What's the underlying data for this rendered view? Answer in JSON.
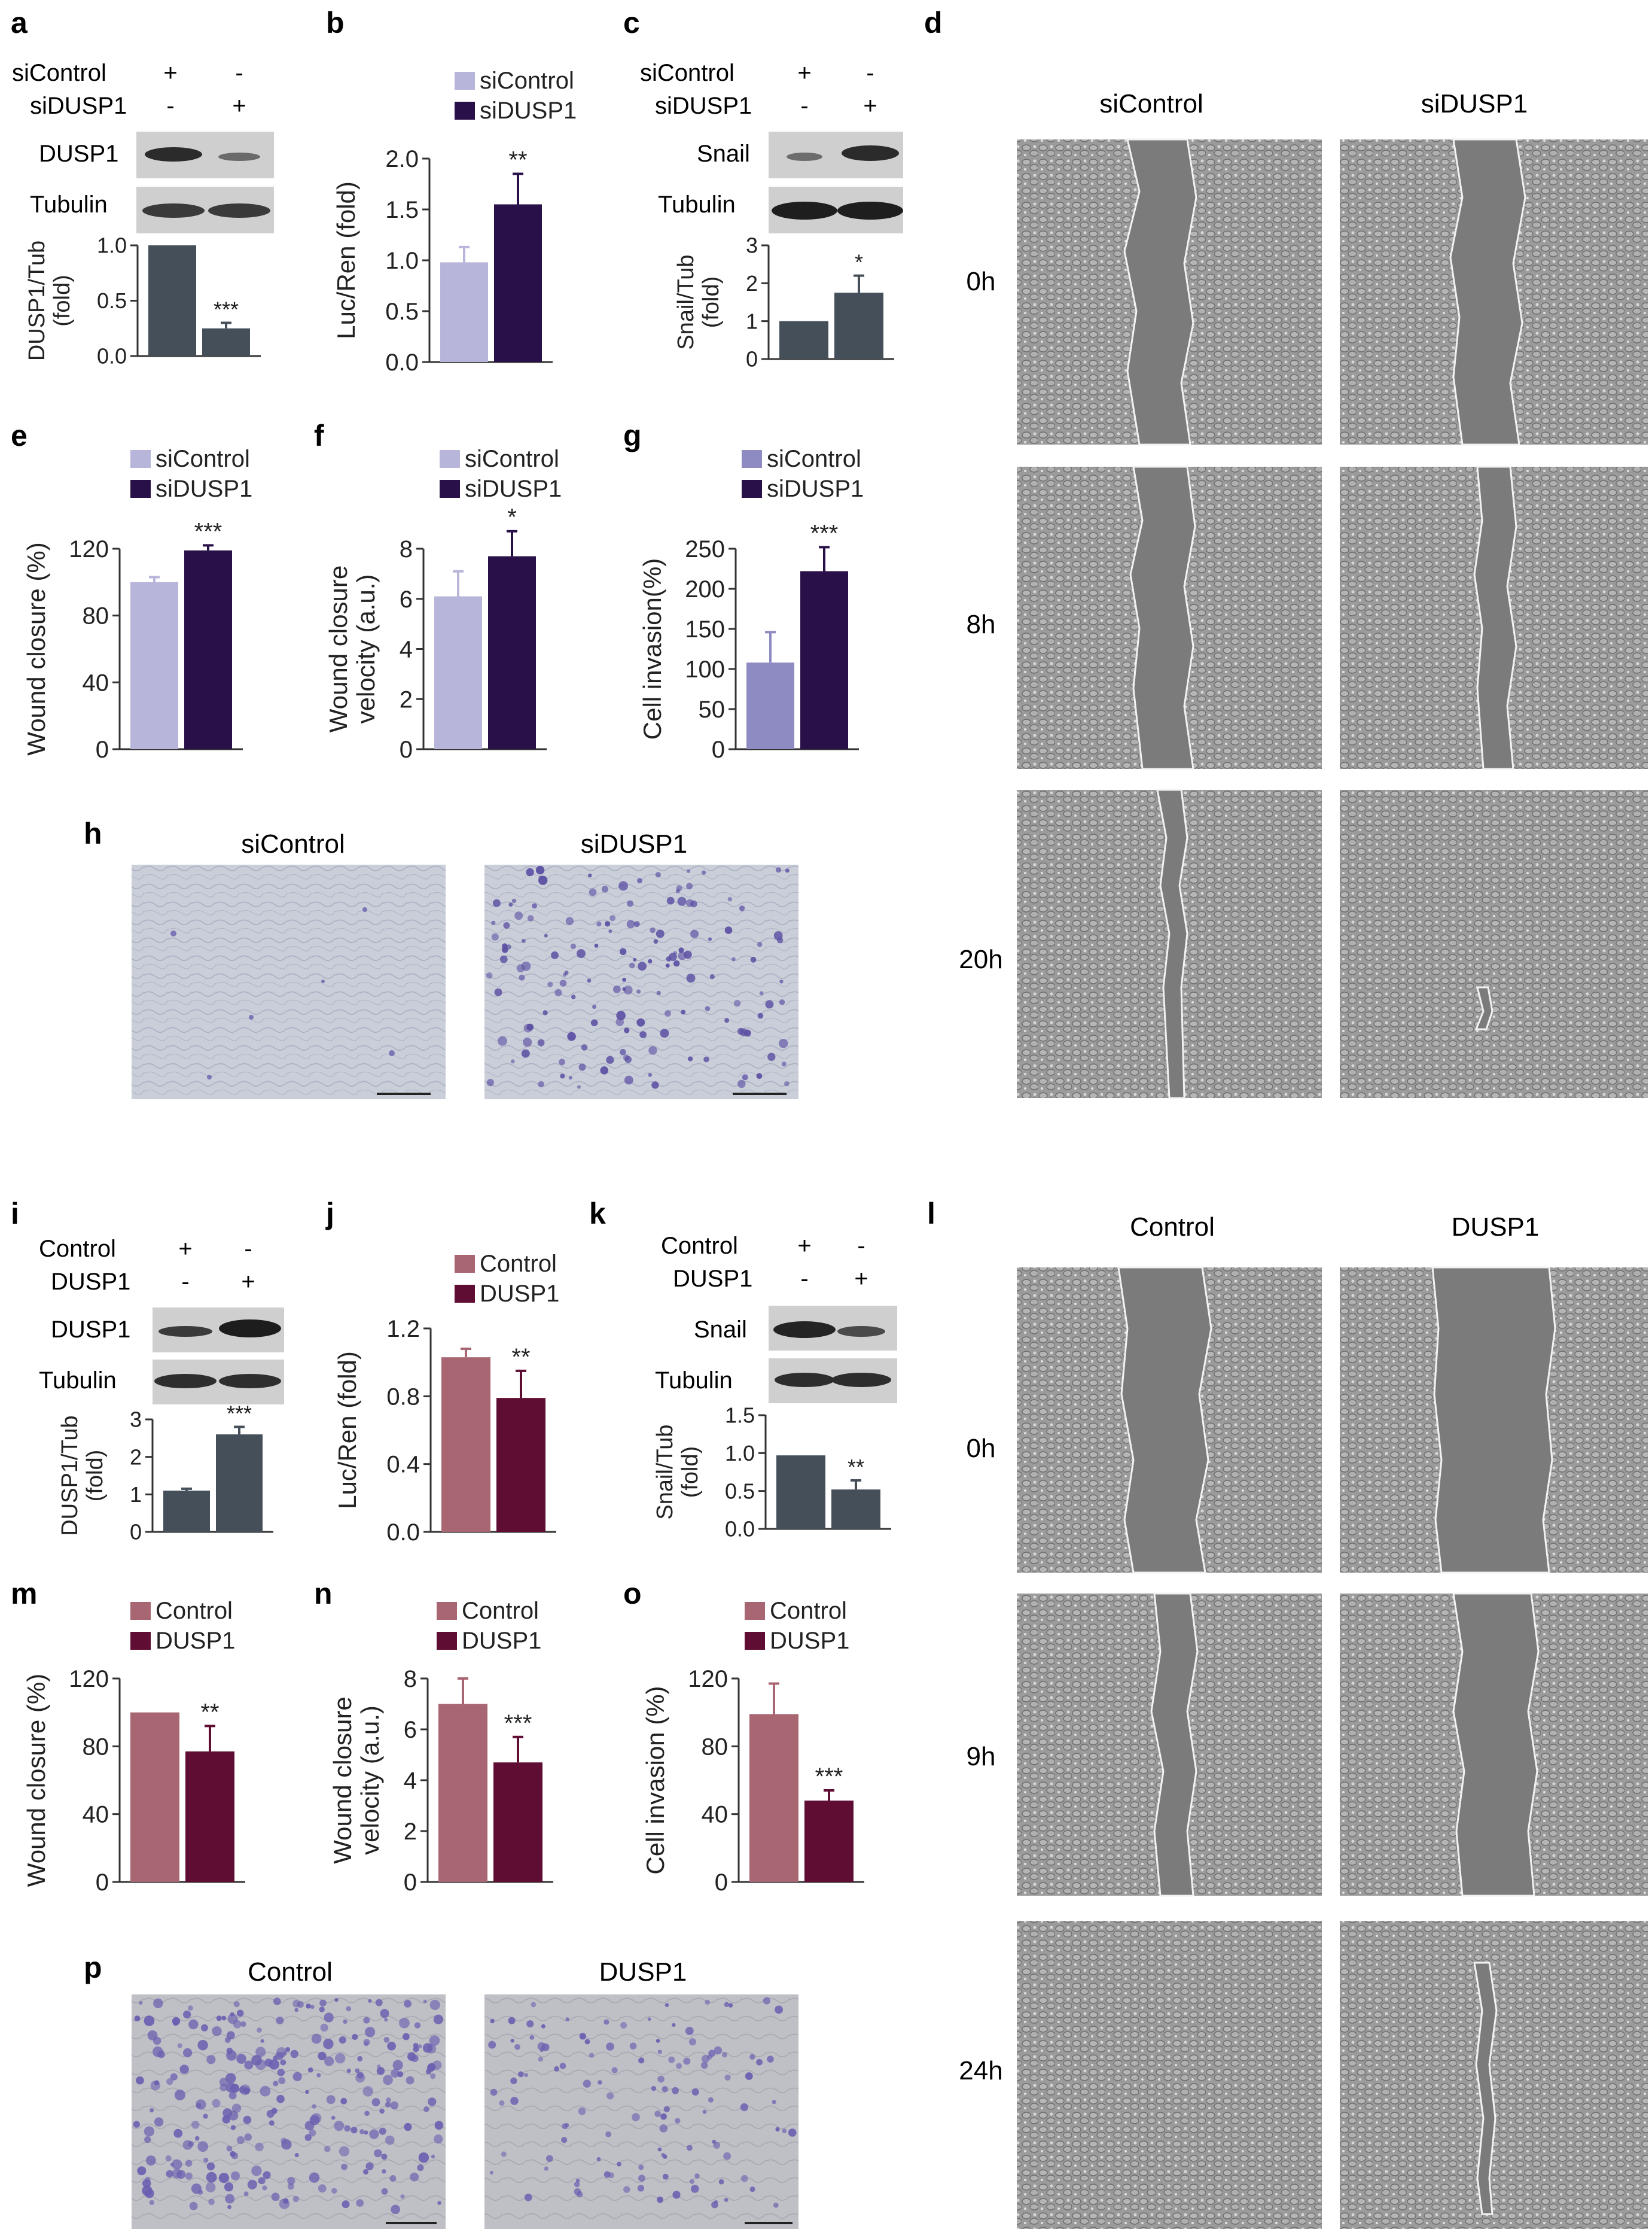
{
  "colors": {
    "si_ctrl": "#b7b5d9",
    "si_dusp1": "#2a1048",
    "si_ctrl_g": "#8e8bc2",
    "ctrl": "#a86673",
    "dusp1": "#5f0d33",
    "grey_bar": "#444f59",
    "axis": "#333333",
    "micro_bg": "#9a9a9a",
    "micro_gap": "#7d7d7d",
    "invasion_bg": "#c6cbd7",
    "invasion_dot": "#5b4fa3",
    "blot_bg": "#cfcfcf",
    "blot_band": "#2b2b2b"
  },
  "icons": {
    "micrograph": "phase-contrast-micrograph-icon",
    "blot": "western-blot-icon"
  },
  "panels": {
    "a": {
      "label": "a",
      "row1": [
        "siControl",
        "+",
        "-"
      ],
      "row2": [
        "siDUSP1",
        "-",
        "+"
      ],
      "blot1": "DUSP1",
      "blot2": "Tubulin"
    },
    "b": {
      "label": "b"
    },
    "c": {
      "label": "c",
      "row1": [
        "siControl",
        "+",
        "-"
      ],
      "row2": [
        "siDUSP1",
        "-",
        "+"
      ],
      "blot1": "Snail",
      "blot2": "Tubulin"
    },
    "d": {
      "label": "d",
      "col1": "siControl",
      "col2": "siDUSP1",
      "times": [
        "0h",
        "8h",
        "20h"
      ]
    },
    "e": {
      "label": "e"
    },
    "f": {
      "label": "f"
    },
    "g": {
      "label": "g"
    },
    "h": {
      "label": "h",
      "col1": "siControl",
      "col2": "siDUSP1"
    },
    "i": {
      "label": "i",
      "row1": [
        "Control",
        "+",
        "-"
      ],
      "row2": [
        "DUSP1",
        "-",
        "+"
      ],
      "blot1": "DUSP1",
      "blot2": "Tubulin"
    },
    "j": {
      "label": "j"
    },
    "k": {
      "label": "k",
      "row1": [
        "Control",
        "+",
        "-"
      ],
      "row2": [
        "DUSP1",
        "-",
        "+"
      ],
      "blot1": "Snail",
      "blot2": "Tubulin"
    },
    "l": {
      "label": "l",
      "col1": "Control",
      "col2": "DUSP1",
      "times": [
        "0h",
        "9h",
        "24h"
      ]
    },
    "m": {
      "label": "m"
    },
    "n": {
      "label": "n"
    },
    "o": {
      "label": "o"
    },
    "p": {
      "label": "p",
      "col1": "Control",
      "col2": "DUSP1"
    }
  },
  "chart_data": [
    {
      "id": "a",
      "type": "bar",
      "ylabel": [
        "DUSP1/Tub",
        "(fold)"
      ],
      "ylim": [
        0,
        1
      ],
      "ticks": [
        "0.0",
        "0.5",
        "1.0"
      ],
      "tick_values": [
        0,
        0.5,
        1
      ],
      "categories": [
        "siControl",
        "siDUSP1"
      ],
      "values": [
        1.0,
        0.25
      ],
      "errors": [
        0.0,
        0.05
      ],
      "sig": [
        "",
        "***"
      ],
      "legend": [],
      "color_keys": [
        "grey_bar",
        "grey_bar"
      ]
    },
    {
      "id": "b",
      "type": "bar",
      "ylabel": [
        "Luc/Ren (fold)"
      ],
      "ylim": [
        0,
        2.0
      ],
      "ticks": [
        "0.0",
        "0.5",
        "1.0",
        "1.5",
        "2.0"
      ],
      "tick_values": [
        0,
        0.5,
        1.0,
        1.5,
        2.0
      ],
      "categories": [
        "siControl",
        "siDUSP1"
      ],
      "values": [
        0.98,
        1.55
      ],
      "errors": [
        0.15,
        0.3
      ],
      "sig": [
        "",
        "**"
      ],
      "legend": [
        "siControl",
        "siDUSP1"
      ],
      "color_keys": [
        "si_ctrl",
        "si_dusp1"
      ]
    },
    {
      "id": "c",
      "type": "bar",
      "ylabel": [
        "Snail/Tub",
        "(fold)"
      ],
      "ylim": [
        0,
        3
      ],
      "ticks": [
        "0",
        "1",
        "2",
        "3"
      ],
      "tick_values": [
        0,
        1,
        2,
        3
      ],
      "categories": [
        "siControl",
        "siDUSP1"
      ],
      "values": [
        1.0,
        1.75
      ],
      "errors": [
        0.0,
        0.45
      ],
      "sig": [
        "",
        "*"
      ],
      "legend": [],
      "color_keys": [
        "grey_bar",
        "grey_bar"
      ]
    },
    {
      "id": "e",
      "type": "bar",
      "ylabel": [
        "Wound closure (%)"
      ],
      "ylim": [
        0,
        120
      ],
      "ticks": [
        "0",
        "40",
        "80",
        "120"
      ],
      "tick_values": [
        0,
        40,
        80,
        120
      ],
      "categories": [
        "siControl",
        "siDUSP1"
      ],
      "values": [
        100,
        119
      ],
      "errors": [
        3,
        3
      ],
      "sig": [
        "",
        "***"
      ],
      "legend": [
        "siControl",
        "siDUSP1"
      ],
      "color_keys": [
        "si_ctrl",
        "si_dusp1"
      ]
    },
    {
      "id": "f",
      "type": "bar",
      "ylabel": [
        "Wound closure",
        "velocity (a.u.)"
      ],
      "ylim": [
        0,
        8
      ],
      "ticks": [
        "0",
        "2",
        "4",
        "6",
        "8"
      ],
      "tick_values": [
        0,
        2,
        4,
        6,
        8
      ],
      "categories": [
        "siControl",
        "siDUSP1"
      ],
      "values": [
        6.1,
        7.7
      ],
      "errors": [
        1.0,
        1.0
      ],
      "sig": [
        "",
        "*"
      ],
      "legend": [
        "siControl",
        "siDUSP1"
      ],
      "color_keys": [
        "si_ctrl",
        "si_dusp1"
      ]
    },
    {
      "id": "g",
      "type": "bar",
      "ylabel": [
        "Cell invasion(%)"
      ],
      "ylim": [
        0,
        250
      ],
      "ticks": [
        "0",
        "50",
        "100",
        "150",
        "200",
        "250"
      ],
      "tick_values": [
        0,
        50,
        100,
        150,
        200,
        250
      ],
      "categories": [
        "siControl",
        "siDUSP1"
      ],
      "values": [
        108,
        222
      ],
      "errors": [
        38,
        30
      ],
      "sig": [
        "",
        "***"
      ],
      "legend": [
        "siControl",
        "siDUSP1"
      ],
      "color_keys": [
        "si_ctrl_g",
        "si_dusp1"
      ]
    },
    {
      "id": "i",
      "type": "bar",
      "ylabel": [
        "DUSP1/Tub",
        "(fold)"
      ],
      "ylim": [
        0,
        3
      ],
      "ticks": [
        "0",
        "1",
        "2",
        "3"
      ],
      "tick_values": [
        0,
        1,
        2,
        3
      ],
      "categories": [
        "Control",
        "DUSP1"
      ],
      "values": [
        1.1,
        2.6
      ],
      "errors": [
        0.05,
        0.2
      ],
      "sig": [
        "",
        "***"
      ],
      "legend": [],
      "color_keys": [
        "grey_bar",
        "grey_bar"
      ]
    },
    {
      "id": "j",
      "type": "bar",
      "ylabel": [
        "Luc/Ren (fold)"
      ],
      "ylim": [
        0,
        1.2
      ],
      "ticks": [
        "0.0",
        "0.4",
        "0.8",
        "1.2"
      ],
      "tick_values": [
        0,
        0.4,
        0.8,
        1.2
      ],
      "categories": [
        "Control",
        "DUSP1"
      ],
      "values": [
        1.03,
        0.79
      ],
      "errors": [
        0.05,
        0.16
      ],
      "sig": [
        "",
        "**"
      ],
      "legend": [
        "Control",
        "DUSP1"
      ],
      "color_keys": [
        "ctrl",
        "dusp1"
      ]
    },
    {
      "id": "k",
      "type": "bar",
      "ylabel": [
        "Snail/Tub",
        "(fold)"
      ],
      "ylim": [
        0,
        1.5
      ],
      "ticks": [
        "0.0",
        "0.5",
        "1.0",
        "1.5"
      ],
      "tick_values": [
        0,
        0.5,
        1.0,
        1.5
      ],
      "categories": [
        "Control",
        "DUSP1"
      ],
      "values": [
        0.97,
        0.52
      ],
      "errors": [
        0.0,
        0.12
      ],
      "sig": [
        "",
        "**"
      ],
      "legend": [],
      "color_keys": [
        "grey_bar",
        "grey_bar"
      ]
    },
    {
      "id": "m",
      "type": "bar",
      "ylabel": [
        "Wound closure (%)"
      ],
      "ylim": [
        0,
        120
      ],
      "ticks": [
        "0",
        "40",
        "80",
        "120"
      ],
      "tick_values": [
        0,
        40,
        80,
        120
      ],
      "categories": [
        "Control",
        "DUSP1"
      ],
      "values": [
        100,
        77
      ],
      "errors": [
        0,
        15
      ],
      "sig": [
        "",
        "**"
      ],
      "legend": [
        "Control",
        "DUSP1"
      ],
      "color_keys": [
        "ctrl",
        "dusp1"
      ]
    },
    {
      "id": "n",
      "type": "bar",
      "ylabel": [
        "Wound closure",
        "velocity (a.u.)"
      ],
      "ylim": [
        0,
        8
      ],
      "ticks": [
        "0",
        "2",
        "4",
        "6",
        "8"
      ],
      "tick_values": [
        0,
        2,
        4,
        6,
        8
      ],
      "categories": [
        "Control",
        "DUSP1"
      ],
      "values": [
        7.0,
        4.7
      ],
      "errors": [
        1.0,
        1.0
      ],
      "sig": [
        "",
        "***"
      ],
      "legend": [
        "Control",
        "DUSP1"
      ],
      "color_keys": [
        "ctrl",
        "dusp1"
      ]
    },
    {
      "id": "o",
      "type": "bar",
      "ylabel": [
        "Cell invasion (%)"
      ],
      "ylim": [
        0,
        120
      ],
      "ticks": [
        "0",
        "40",
        "80",
        "120"
      ],
      "tick_values": [
        0,
        40,
        80,
        120
      ],
      "categories": [
        "Control",
        "DUSP1"
      ],
      "values": [
        99,
        48
      ],
      "errors": [
        18,
        6
      ],
      "sig": [
        "",
        "***"
      ],
      "legend": [
        "Control",
        "DUSP1"
      ],
      "color_keys": [
        "ctrl",
        "dusp1"
      ]
    }
  ]
}
